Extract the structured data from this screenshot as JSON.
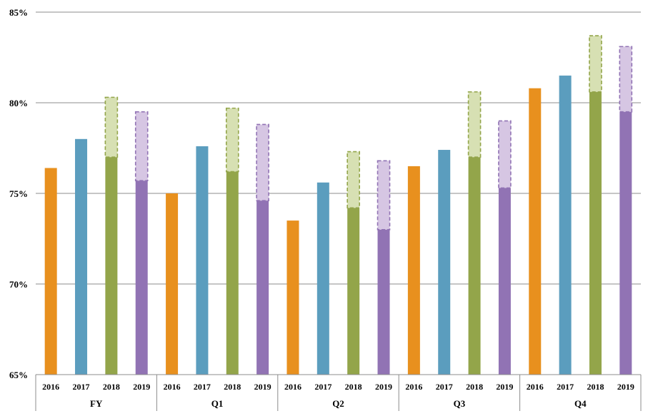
{
  "chart_data": {
    "type": "bar",
    "title": "",
    "xlabel": "",
    "ylabel": "",
    "ylim": [
      65,
      85
    ],
    "yticks": [
      65,
      70,
      75,
      80,
      85
    ],
    "ytick_labels": [
      "65%",
      "70%",
      "75%",
      "80%",
      "85%"
    ],
    "grid": true,
    "legend": "none",
    "groups": [
      {
        "name": "FY",
        "bars": [
          {
            "year": "2016",
            "value": 76.4,
            "color": "#E8901E"
          },
          {
            "year": "2017",
            "value": 78.0,
            "color": "#5B9DBE"
          },
          {
            "year": "2018",
            "value": 77.0,
            "range_top": 80.3,
            "color": "#93A54A",
            "range_color": "#D7E0B3"
          },
          {
            "year": "2019",
            "value": 75.7,
            "range_top": 79.5,
            "color": "#9173B4",
            "range_color": "#D6C6E3"
          }
        ]
      },
      {
        "name": "Q1",
        "bars": [
          {
            "year": "2016",
            "value": 75.0,
            "color": "#E8901E"
          },
          {
            "year": "2017",
            "value": 77.6,
            "color": "#5B9DBE"
          },
          {
            "year": "2018",
            "value": 76.2,
            "range_top": 79.7,
            "color": "#93A54A",
            "range_color": "#D7E0B3"
          },
          {
            "year": "2019",
            "value": 74.6,
            "range_top": 78.8,
            "color": "#9173B4",
            "range_color": "#D6C6E3"
          }
        ]
      },
      {
        "name": "Q2",
        "bars": [
          {
            "year": "2016",
            "value": 73.5,
            "color": "#E8901E"
          },
          {
            "year": "2017",
            "value": 75.6,
            "color": "#5B9DBE"
          },
          {
            "year": "2018",
            "value": 74.2,
            "range_top": 77.3,
            "color": "#93A54A",
            "range_color": "#D7E0B3"
          },
          {
            "year": "2019",
            "value": 73.0,
            "range_top": 76.8,
            "color": "#9173B4",
            "range_color": "#D6C6E3"
          }
        ]
      },
      {
        "name": "Q3",
        "bars": [
          {
            "year": "2016",
            "value": 76.5,
            "color": "#E8901E"
          },
          {
            "year": "2017",
            "value": 77.4,
            "color": "#5B9DBE"
          },
          {
            "year": "2018",
            "value": 77.0,
            "range_top": 80.6,
            "color": "#93A54A",
            "range_color": "#D7E0B3"
          },
          {
            "year": "2019",
            "value": 75.3,
            "range_top": 79.0,
            "color": "#9173B4",
            "range_color": "#D6C6E3"
          }
        ]
      },
      {
        "name": "Q4",
        "bars": [
          {
            "year": "2016",
            "value": 80.8,
            "color": "#E8901E"
          },
          {
            "year": "2017",
            "value": 81.5,
            "color": "#5B9DBE"
          },
          {
            "year": "2018",
            "value": 80.6,
            "range_top": 83.7,
            "color": "#93A54A",
            "range_color": "#D7E0B3"
          },
          {
            "year": "2019",
            "value": 79.5,
            "range_top": 83.1,
            "color": "#9173B4",
            "range_color": "#D6C6E3"
          }
        ]
      }
    ]
  }
}
